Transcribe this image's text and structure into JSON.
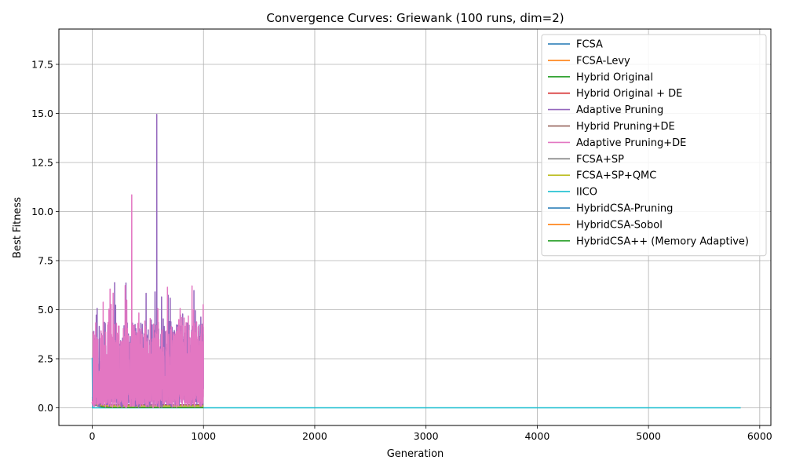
{
  "chart_data": {
    "type": "line",
    "title": "Convergence Curves: Griewank (100 runs, dim=2)",
    "xlabel": "Generation",
    "ylabel": "Best Fitness",
    "xlim": [
      -300,
      6100
    ],
    "ylim": [
      -0.9,
      19.3
    ],
    "xticks": [
      0,
      1000,
      2000,
      3000,
      4000,
      5000,
      6000
    ],
    "yticks": [
      0.0,
      2.5,
      5.0,
      7.5,
      10.0,
      12.5,
      15.0,
      17.5
    ],
    "grid": true,
    "legend_position": "top-right",
    "series": [
      {
        "name": "FCSA",
        "color": "#1f77b4",
        "generations": 1000,
        "start": 0.55,
        "end": 0.02
      },
      {
        "name": "FCSA-Levy",
        "color": "#ff7f0e",
        "generations": 1000,
        "start": 0.5,
        "end": 0.03
      },
      {
        "name": "Hybrid Original",
        "color": "#2ca02c",
        "generations": 1000,
        "start": 0.45,
        "end": 0.02
      },
      {
        "name": "Hybrid Original + DE",
        "color": "#d62728",
        "generations": 1000,
        "start": 0.4,
        "end": 0.02
      },
      {
        "name": "Adaptive Pruning",
        "color": "#9467bd",
        "generations": 1000,
        "noisy": true,
        "max": 14.95
      },
      {
        "name": "Hybrid Pruning+DE",
        "color": "#8c564b",
        "generations": 1000,
        "start": 0.35,
        "end": 0.15
      },
      {
        "name": "Adaptive Pruning+DE",
        "color": "#e377c2",
        "generations": 1000,
        "noisy": true,
        "max": 10.85
      },
      {
        "name": "FCSA+SP",
        "color": "#7f7f7f",
        "generations": 1000,
        "start": 0.4,
        "end": 0.02
      },
      {
        "name": "FCSA+SP+QMC",
        "color": "#bcbd22",
        "generations": 1000,
        "start": 0.35,
        "end": 0.1
      },
      {
        "name": "IICO",
        "color": "#17becf",
        "generations": 5830,
        "start": 2.55,
        "end": 0.0
      },
      {
        "name": "HybridCSA-Pruning",
        "color": "#1f77b4",
        "generations": 1000,
        "start": 0.3,
        "end": 0.02
      },
      {
        "name": "HybridCSA-Sobol",
        "color": "#ff7f0e",
        "generations": 1000,
        "start": 0.3,
        "end": 0.02
      },
      {
        "name": "HybridCSA++ (Memory Adaptive)",
        "color": "#2ca02c",
        "generations": 1000,
        "start": 0.3,
        "end": 0.01
      }
    ]
  }
}
